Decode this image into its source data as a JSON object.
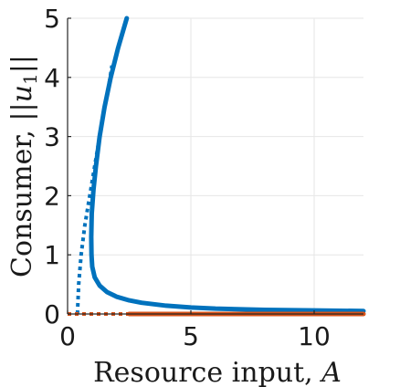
{
  "chart_data": {
    "type": "line",
    "xlabel": "Resource input, A",
    "ylabel": "Consumer, ||u1||",
    "xlim": [
      0,
      12
    ],
    "ylim": [
      0,
      5
    ],
    "xticks": [
      "0",
      "5",
      "10"
    ],
    "yticks": [
      "0",
      "1",
      "2",
      "3",
      "4",
      "5"
    ],
    "grid": true,
    "colors": {
      "blue": "#0072BD",
      "orange": "#D95319"
    },
    "series": [
      {
        "style": "solid",
        "color": "#0072BD",
        "x": [
          12.0,
          10.0,
          8.0,
          6.0,
          5.0,
          4.0,
          3.0,
          2.5,
          2.0,
          1.6,
          1.3,
          1.1,
          1.0,
          0.97,
          0.96,
          0.98,
          1.05,
          1.15,
          1.3,
          1.5,
          1.75,
          2.05,
          2.4
        ],
        "y": [
          0.05,
          0.06,
          0.07,
          0.09,
          0.11,
          0.14,
          0.19,
          0.23,
          0.29,
          0.37,
          0.48,
          0.62,
          0.8,
          1.0,
          1.3,
          1.7,
          2.1,
          2.5,
          3.0,
          3.5,
          4.0,
          4.5,
          5.0
        ]
      },
      {
        "style": "dotted",
        "color": "#0072BD",
        "x": [
          0.4,
          0.45,
          0.55,
          0.7,
          0.9,
          1.1,
          1.3,
          1.5,
          1.65,
          1.8
        ],
        "y": [
          0.0,
          0.5,
          1.0,
          1.5,
          2.0,
          2.5,
          3.0,
          3.5,
          3.8,
          4.2
        ]
      },
      {
        "style": "dotted",
        "color": "#D95319",
        "x": [
          0.0,
          2.5
        ],
        "y": [
          0.0,
          0.0
        ]
      },
      {
        "style": "solid",
        "color": "#D95319",
        "x": [
          2.5,
          12.0
        ],
        "y": [
          0.0,
          0.0
        ]
      }
    ]
  }
}
